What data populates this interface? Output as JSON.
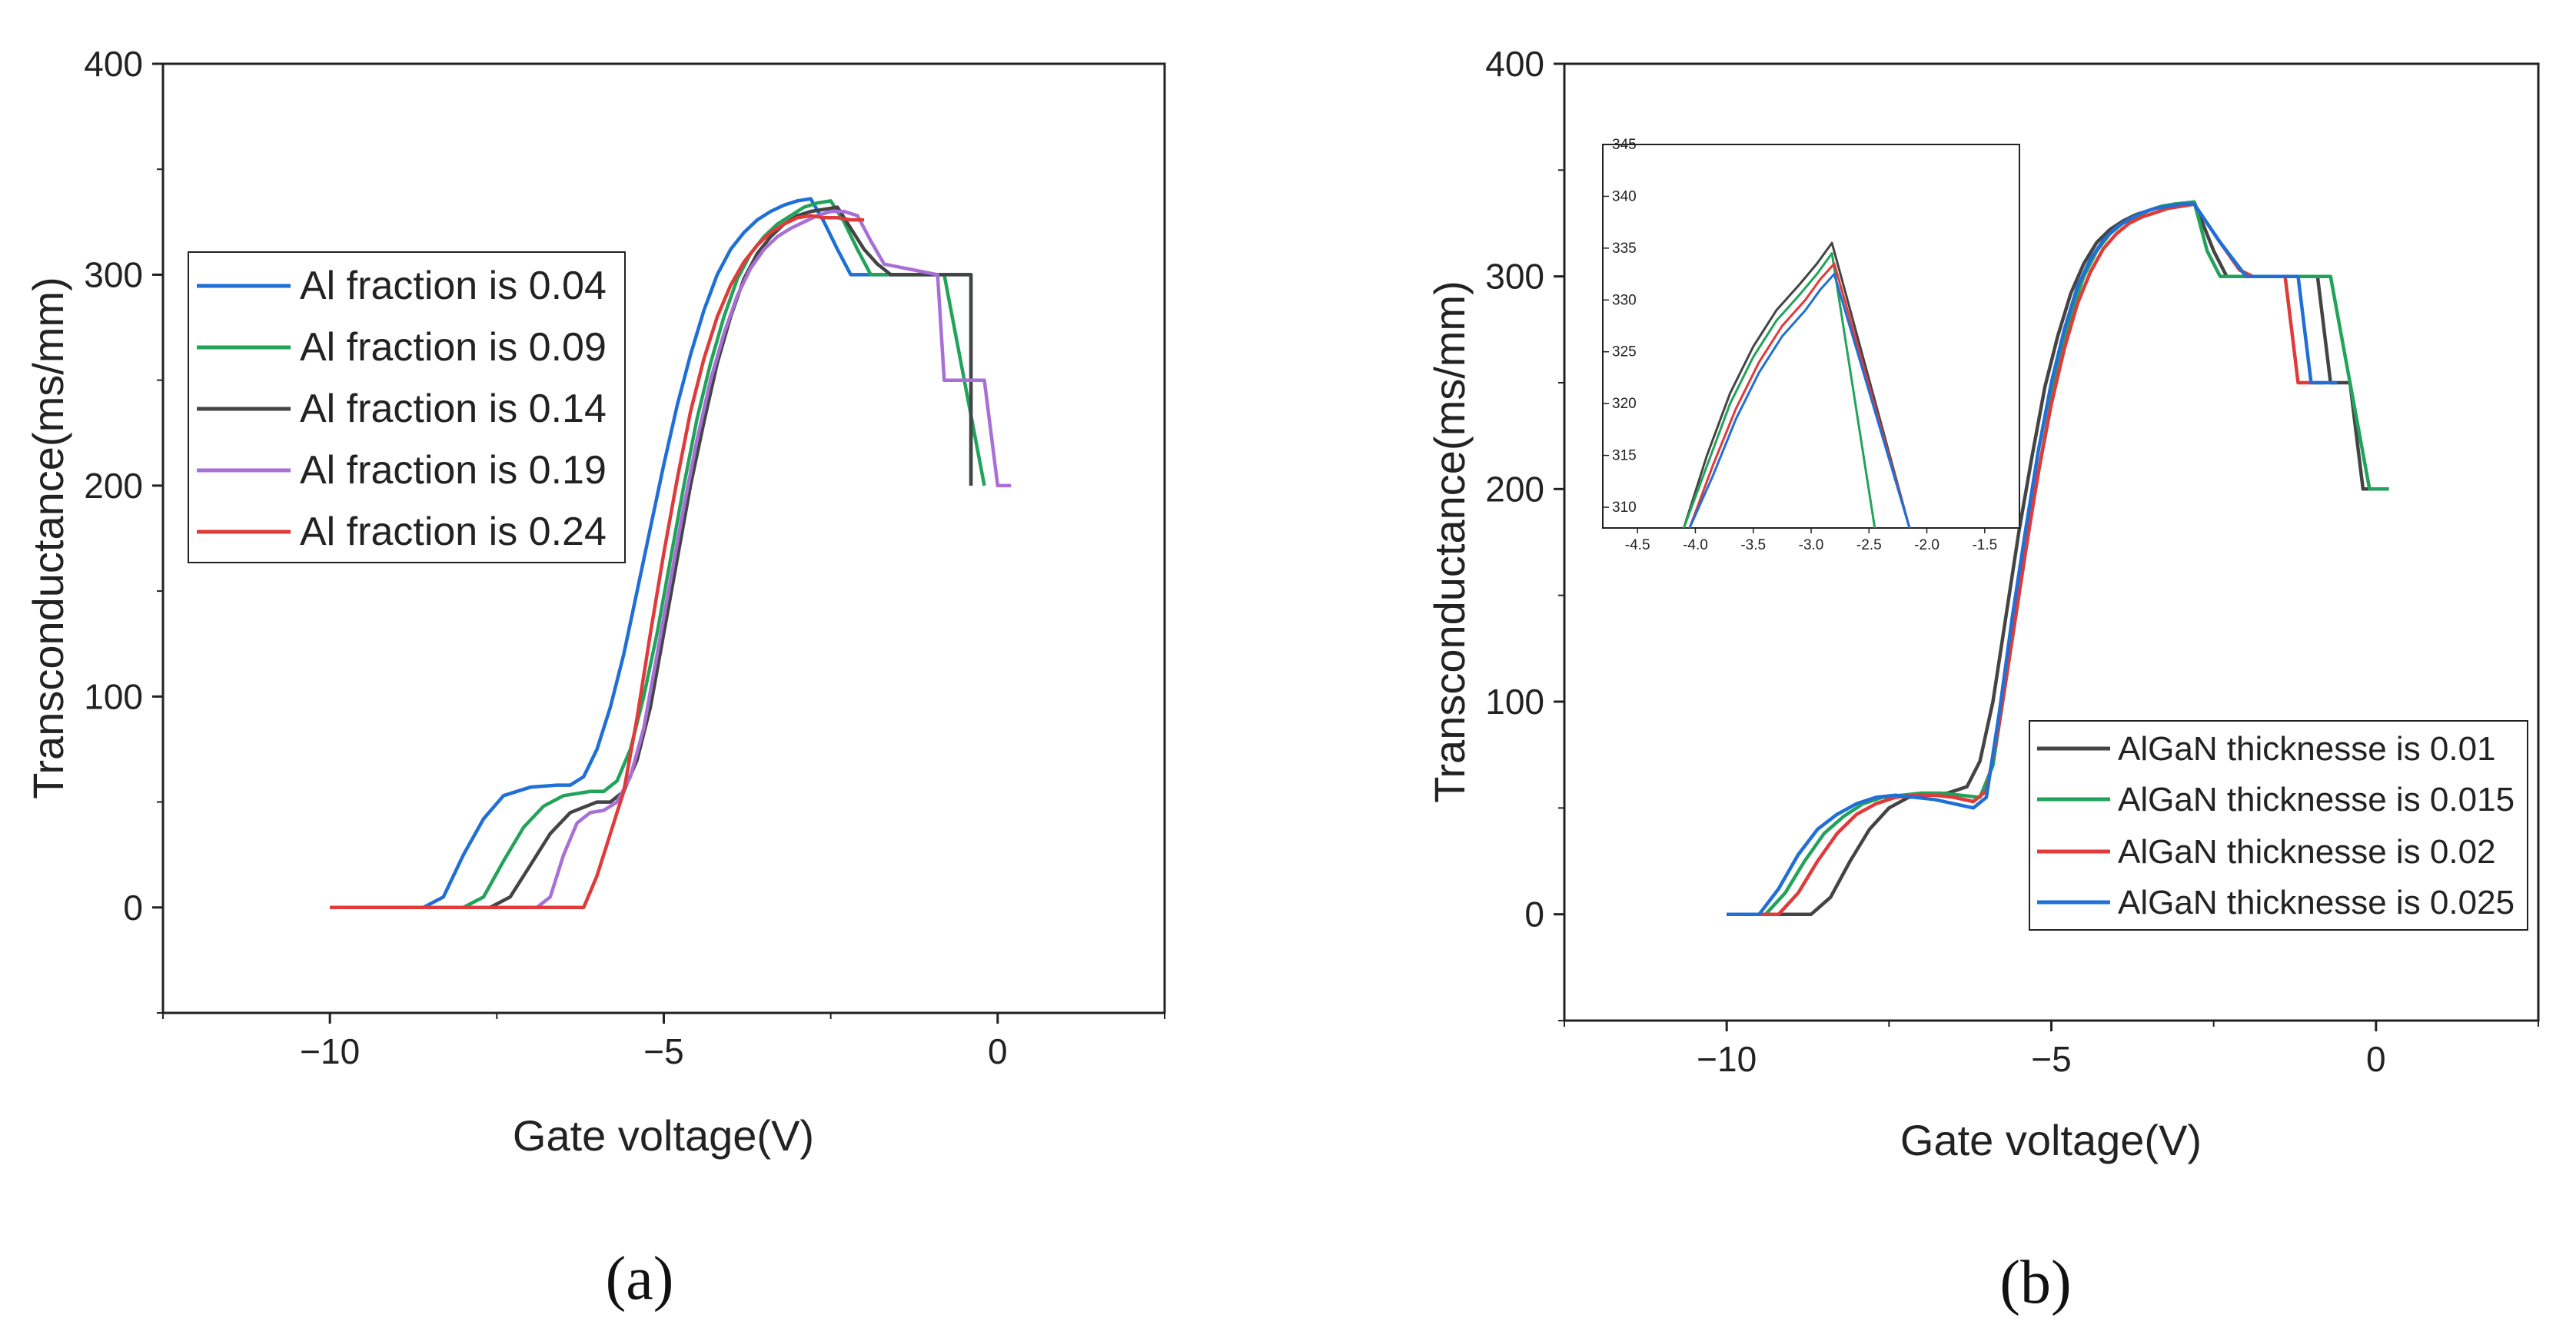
{
  "chart_data": [
    {
      "id": "a",
      "type": "line",
      "caption": "(a)",
      "xlabel": "Gate voltage(V)",
      "ylabel": "Transconductance(ms/mm)",
      "xlim": [
        -12.5,
        2.5
      ],
      "ylim": [
        -50,
        400
      ],
      "xticks": [
        -10,
        -5,
        0
      ],
      "yticks": [
        0,
        100,
        200,
        300,
        400
      ],
      "grid": false,
      "legend_position": "upper-left",
      "series": [
        {
          "name": "Al fraction is 0.04",
          "color": "#1f6fd6",
          "x": [
            -10,
            -8.6,
            -8.3,
            -8.0,
            -7.7,
            -7.4,
            -7.0,
            -6.6,
            -6.4,
            -6.2,
            -6.0,
            -5.8,
            -5.6,
            -5.4,
            -5.2,
            -5.0,
            -4.8,
            -4.6,
            -4.4,
            -4.2,
            -4.0,
            -3.8,
            -3.6,
            -3.4,
            -3.2,
            -3.0,
            -2.8,
            -2.6,
            -2.4,
            -2.2,
            -2.0,
            -0.8,
            -0.4,
            -0.4
          ],
          "y": [
            0,
            0,
            5,
            25,
            42,
            53,
            57,
            58,
            58,
            62,
            75,
            95,
            120,
            150,
            180,
            210,
            238,
            262,
            283,
            300,
            312,
            320,
            326,
            330,
            333,
            335,
            336,
            325,
            312,
            300,
            300,
            300,
            300,
            200
          ]
        },
        {
          "name": "Al fraction is 0.09",
          "color": "#22a35a",
          "x": [
            -10,
            -8.0,
            -7.7,
            -7.4,
            -7.1,
            -6.8,
            -6.5,
            -6.1,
            -5.9,
            -5.7,
            -5.5,
            -5.3,
            -5.1,
            -4.9,
            -4.7,
            -4.5,
            -4.3,
            -4.1,
            -3.9,
            -3.7,
            -3.5,
            -3.3,
            -3.1,
            -2.9,
            -2.7,
            -2.5,
            -2.3,
            -2.1,
            -1.9,
            -0.8,
            -0.5,
            -0.2
          ],
          "y": [
            0,
            0,
            5,
            22,
            38,
            48,
            53,
            55,
            55,
            60,
            75,
            100,
            130,
            165,
            200,
            232,
            258,
            280,
            298,
            310,
            318,
            324,
            328,
            332,
            334,
            335,
            325,
            312,
            300,
            300,
            250,
            200
          ]
        },
        {
          "name": "Al fraction is 0.14",
          "color": "#444444",
          "x": [
            -10,
            -7.6,
            -7.3,
            -7.0,
            -6.7,
            -6.4,
            -6.0,
            -5.8,
            -5.6,
            -5.4,
            -5.2,
            -5.0,
            -4.8,
            -4.6,
            -4.4,
            -4.2,
            -4.0,
            -3.8,
            -3.6,
            -3.4,
            -3.2,
            -3.0,
            -2.8,
            -2.6,
            -2.4,
            -2.2,
            -2.0,
            -1.8,
            -1.6,
            -0.4,
            -0.4
          ],
          "y": [
            0,
            0,
            5,
            20,
            35,
            45,
            50,
            50,
            55,
            70,
            95,
            130,
            165,
            200,
            230,
            258,
            280,
            298,
            310,
            318,
            324,
            328,
            330,
            331,
            332,
            322,
            312,
            305,
            300,
            300,
            200
          ]
        },
        {
          "name": "Al fraction is 0.19",
          "color": "#a86fd6",
          "x": [
            -10,
            -6.9,
            -6.7,
            -6.5,
            -6.3,
            -6.1,
            -5.9,
            -5.7,
            -5.5,
            -5.3,
            -5.1,
            -4.9,
            -4.7,
            -4.5,
            -4.3,
            -4.1,
            -3.9,
            -3.7,
            -3.5,
            -3.3,
            -3.1,
            -2.9,
            -2.7,
            -2.5,
            -2.3,
            -2.1,
            -1.9,
            -1.7,
            -0.9,
            -0.8,
            -0.2,
            0.0,
            0.2
          ],
          "y": [
            0,
            0,
            5,
            25,
            40,
            45,
            46,
            50,
            62,
            85,
            120,
            155,
            190,
            222,
            250,
            272,
            290,
            303,
            312,
            318,
            322,
            325,
            328,
            330,
            330,
            328,
            316,
            305,
            300,
            250,
            250,
            200,
            200
          ]
        },
        {
          "name": "Al fraction is 0.24",
          "color": "#e03a3a",
          "x": [
            -10,
            -6.2,
            -6.0,
            -5.8,
            -5.6,
            -5.4,
            -5.2,
            -5.0,
            -4.8,
            -4.6,
            -4.4,
            -4.2,
            -4.0,
            -3.8,
            -3.6,
            -3.4,
            -3.2,
            -3.0,
            -2.8,
            -2.6,
            -2.4,
            -2.2,
            -2.0
          ],
          "y": [
            0,
            0,
            15,
            35,
            55,
            90,
            130,
            168,
            203,
            235,
            260,
            280,
            295,
            306,
            314,
            320,
            324,
            327,
            328,
            327,
            327,
            326,
            326
          ]
        }
      ]
    },
    {
      "id": "b",
      "type": "line",
      "caption": "(b)",
      "xlabel": "Gate voltage(V)",
      "ylabel": "Transconductance(ms/mm)",
      "xlim": [
        -12.5,
        2.5
      ],
      "ylim": [
        -50,
        400
      ],
      "xticks": [
        -10,
        -5,
        0
      ],
      "yticks": [
        0,
        100,
        200,
        300,
        400
      ],
      "grid": false,
      "legend_position": "lower-right",
      "series": [
        {
          "name": "AlGaN thicknesse is 0.01",
          "color": "#444444",
          "x": [
            -10,
            -8.7,
            -8.4,
            -8.1,
            -7.8,
            -7.5,
            -7.2,
            -6.9,
            -6.6,
            -6.3,
            -6.1,
            -5.9,
            -5.7,
            -5.5,
            -5.3,
            -5.1,
            -4.9,
            -4.7,
            -4.5,
            -4.3,
            -4.1,
            -3.9,
            -3.7,
            -3.5,
            -3.3,
            -3.1,
            -2.8,
            -2.5,
            -2.3,
            -0.9,
            -0.7,
            -0.4,
            -0.2,
            0.0
          ],
          "y": [
            0,
            0,
            8,
            25,
            40,
            50,
            55,
            56,
            57,
            60,
            72,
            100,
            140,
            180,
            215,
            248,
            272,
            292,
            306,
            316,
            322,
            326,
            329,
            331,
            333,
            334,
            335,
            312,
            300,
            300,
            250,
            250,
            200,
            200
          ]
        },
        {
          "name": "AlGaN thicknesse is 0.015",
          "color": "#22a35a",
          "x": [
            -10,
            -9.4,
            -9.1,
            -8.8,
            -8.5,
            -8.2,
            -7.9,
            -7.6,
            -7.3,
            -7.0,
            -6.7,
            -6.4,
            -6.1,
            -5.9,
            -5.7,
            -5.5,
            -5.3,
            -5.1,
            -4.9,
            -4.7,
            -4.5,
            -4.3,
            -4.1,
            -3.9,
            -3.7,
            -3.5,
            -3.3,
            -3.1,
            -2.8,
            -2.6,
            -2.4,
            -0.7,
            -0.4,
            -0.1,
            0.2
          ],
          "y": [
            0,
            0,
            10,
            25,
            38,
            46,
            52,
            55,
            56,
            57,
            57,
            56,
            55,
            70,
            110,
            150,
            190,
            225,
            258,
            282,
            300,
            312,
            320,
            325,
            328,
            331,
            333,
            334,
            335,
            312,
            300,
            300,
            250,
            200,
            200
          ]
        },
        {
          "name": "AlGaN thicknesse is 0.02",
          "color": "#e03a3a",
          "x": [
            -10,
            -9.2,
            -8.9,
            -8.6,
            -8.3,
            -8.0,
            -7.7,
            -7.4,
            -7.1,
            -6.8,
            -6.5,
            -6.2,
            -6.0,
            -5.8,
            -5.6,
            -5.4,
            -5.2,
            -5.0,
            -4.8,
            -4.6,
            -4.4,
            -4.2,
            -4.0,
            -3.8,
            -3.6,
            -3.4,
            -3.2,
            -3.0,
            -2.8,
            -2.4,
            -2.1,
            -1.9,
            -1.6,
            -1.4,
            -1.2,
            -0.8
          ],
          "y": [
            0,
            0,
            10,
            25,
            38,
            47,
            52,
            55,
            56,
            56,
            55,
            53,
            58,
            90,
            130,
            170,
            208,
            240,
            266,
            287,
            302,
            313,
            320,
            325,
            328,
            330,
            332,
            333,
            334,
            316,
            303,
            300,
            300,
            300,
            250,
            250
          ]
        },
        {
          "name": "AlGaN thicknesse is 0.025",
          "color": "#1f6fd6",
          "x": [
            -10,
            -9.5,
            -9.2,
            -8.9,
            -8.6,
            -8.3,
            -8.0,
            -7.7,
            -7.4,
            -7.1,
            -6.8,
            -6.5,
            -6.2,
            -6.0,
            -5.8,
            -5.6,
            -5.4,
            -5.2,
            -5.0,
            -4.8,
            -4.6,
            -4.4,
            -4.2,
            -4.0,
            -3.8,
            -3.6,
            -3.4,
            -3.2,
            -3.0,
            -2.8,
            -2.4,
            -2.0,
            -1.8,
            -1.5,
            -1.2,
            -1.0,
            -0.8,
            -0.6
          ],
          "y": [
            0,
            0,
            12,
            28,
            40,
            47,
            52,
            55,
            56,
            55,
            54,
            52,
            50,
            55,
            95,
            140,
            180,
            218,
            250,
            275,
            295,
            308,
            317,
            323,
            327,
            330,
            332,
            333,
            334,
            334,
            316,
            300,
            300,
            300,
            300,
            250,
            250,
            250
          ]
        }
      ]
    }
  ],
  "inset": {
    "xlim": [
      -4.8,
      -1.2
    ],
    "ylim": [
      308,
      345
    ],
    "xticks": [
      -4.5,
      -4.0,
      -3.5,
      -3.0,
      -2.5,
      -2.0,
      -1.5
    ],
    "xtick_labels": [
      "-4.5",
      "-4.0",
      "-3.5",
      "-3.0",
      "-2.5",
      "-2.0",
      "-1.5"
    ],
    "yticks": [
      310,
      315,
      320,
      325,
      330,
      335,
      340,
      345
    ],
    "series": [
      {
        "name": "AlGaN thicknesse is 0.01",
        "color": "#444444",
        "x": [
          -4.1,
          -3.9,
          -3.7,
          -3.5,
          -3.3,
          -3.1,
          -2.95,
          -2.82,
          -2.15
        ],
        "y": [
          308,
          315,
          321,
          325.5,
          329,
          331.5,
          333.5,
          335.5,
          308
        ]
      },
      {
        "name": "AlGaN thicknesse is 0.015",
        "color": "#22a35a",
        "x": [
          -4.1,
          -3.9,
          -3.7,
          -3.5,
          -3.3,
          -3.1,
          -2.95,
          -2.82,
          -2.45
        ],
        "y": [
          307,
          314,
          320,
          324.5,
          328,
          330.5,
          332.5,
          334.5,
          307
        ]
      },
      {
        "name": "AlGaN thicknesse is 0.02",
        "color": "#e03a3a",
        "x": [
          -4.05,
          -3.85,
          -3.65,
          -3.45,
          -3.25,
          -3.05,
          -2.92,
          -2.8,
          -2.15
        ],
        "y": [
          307,
          314,
          319.5,
          324,
          327.5,
          330,
          332,
          333.5,
          308
        ]
      },
      {
        "name": "AlGaN thicknesse is 0.025",
        "color": "#1f6fd6",
        "x": [
          -4.05,
          -3.85,
          -3.65,
          -3.45,
          -3.25,
          -3.05,
          -2.92,
          -2.8,
          -2.15
        ],
        "y": [
          307,
          313,
          318.5,
          323,
          326.5,
          329,
          331,
          332.5,
          308
        ]
      }
    ]
  }
}
